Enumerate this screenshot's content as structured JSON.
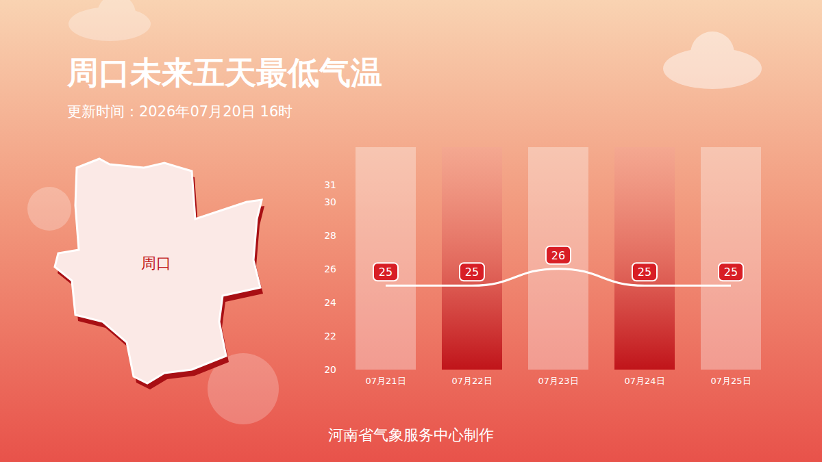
{
  "chart_data": {
    "type": "line",
    "title": "周口未来五天最低气温",
    "subtitle": "更新时间：2026年07月20日 16时",
    "categories": [
      "07月21日",
      "07月22日",
      "07月23日",
      "07月24日",
      "07月25日"
    ],
    "values": [
      25,
      25,
      26,
      25,
      25
    ],
    "color": "#ffffff",
    "ylim": [
      20,
      31
    ],
    "yticks": [
      20,
      22,
      24,
      26,
      28,
      30,
      31
    ],
    "grid": false,
    "data_labels": true,
    "annotations": [
      "周口",
      "河南省气象服务中心制作"
    ]
  }
}
